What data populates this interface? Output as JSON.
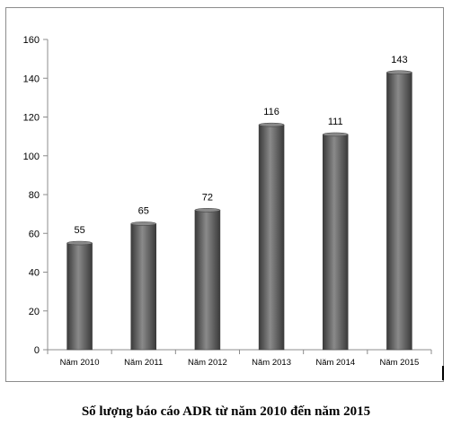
{
  "chart_data": {
    "type": "bar",
    "title": "Số lượng báo cáo ADR từ năm 2010 đến năm 2015",
    "xlabel": "",
    "ylabel": "",
    "categories": [
      "Năm 2010",
      "Năm 2011",
      "Năm 2012",
      "Năm 2013",
      "Năm 2014",
      "Năm 2015"
    ],
    "values": [
      55,
      65,
      72,
      116,
      111,
      143
    ],
    "data_labels": [
      "55",
      "65",
      "72",
      "116",
      "111",
      "143"
    ],
    "ylim": [
      0,
      160
    ],
    "y_ticks": [
      0,
      20,
      40,
      60,
      80,
      100,
      120,
      140,
      160
    ],
    "grid": false,
    "legend": "none",
    "colors": {
      "bar_dark": "#3a3a3a",
      "bar_light": "#8a8a8a",
      "axis": "#8c8c8c"
    }
  }
}
